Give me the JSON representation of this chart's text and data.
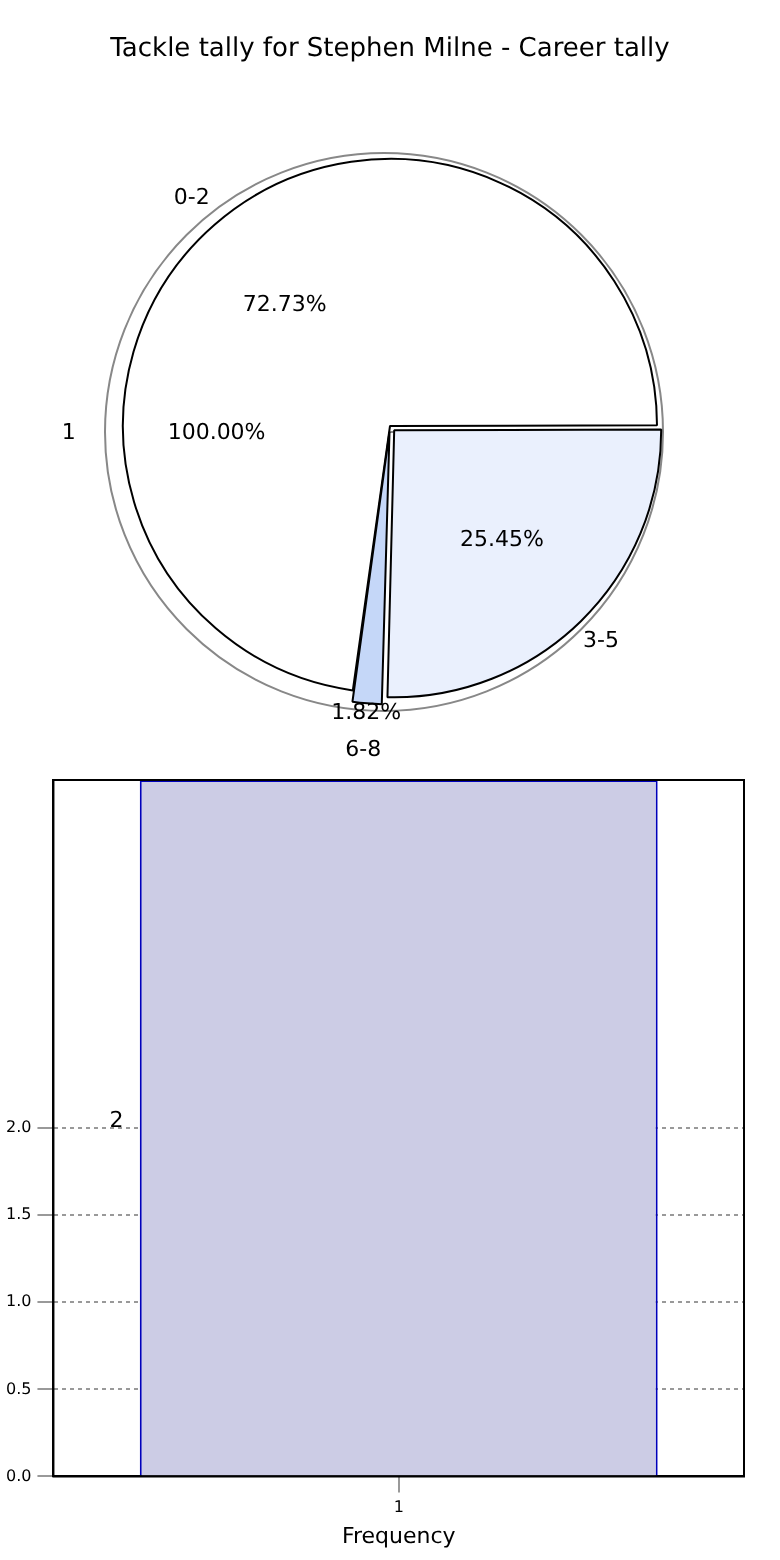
{
  "chart_data": [
    {
      "type": "pie",
      "title": "Tackle tally for Stephen Milne - Career tally",
      "categories": [
        "1"
      ],
      "values": [
        100
      ],
      "colors": [
        "#ffffff"
      ],
      "value_labels": [
        "100.00%"
      ],
      "legend": false
    },
    {
      "type": "pie",
      "categories": [
        "0-2",
        "3-5",
        "6-8"
      ],
      "values": [
        72.73,
        25.45,
        1.82
      ],
      "colors": [
        "#ffffff",
        "#eaf0fd",
        "#c5d7f8"
      ],
      "value_labels": [
        "72.73%",
        "25.45%",
        "1.82%"
      ],
      "legend": false
    },
    {
      "type": "bar",
      "xlabel": "Frequency",
      "categories": [
        "1"
      ],
      "values": [
        4
      ],
      "colors": [
        "#cccce5"
      ],
      "ylim": [
        0,
        4
      ],
      "yticks": [
        {
          "value": 0,
          "label": "0.0"
        },
        {
          "value": 0.5,
          "label": "0.5"
        },
        {
          "value": 1,
          "label": "1.0"
        },
        {
          "value": 1.5,
          "label": "1.5"
        },
        {
          "value": 2,
          "label": "2.0"
        }
      ],
      "grid": true,
      "legend": false,
      "annotations": [
        "2"
      ]
    }
  ]
}
